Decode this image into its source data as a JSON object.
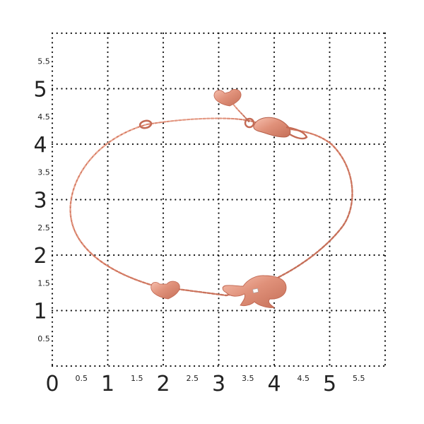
{
  "scale": {
    "x_ticks": [
      "0",
      "0.5",
      "1",
      "1.5",
      "2",
      "2.5",
      "3",
      "3.5",
      "4",
      "4.5",
      "5",
      "5.5"
    ],
    "y_ticks": [
      "0.5",
      "1",
      "1.5",
      "2",
      "2.5",
      "3",
      "3.5",
      "4",
      "4.5",
      "5",
      "5.5"
    ]
  },
  "product": {
    "subject": "rose gold chain bracelet with heart charms and child-figure pendant",
    "metal_color": "#d9826b",
    "metal_dark": "#b4604b",
    "metal_light": "#f2b29d",
    "grid_color": "#111111"
  }
}
